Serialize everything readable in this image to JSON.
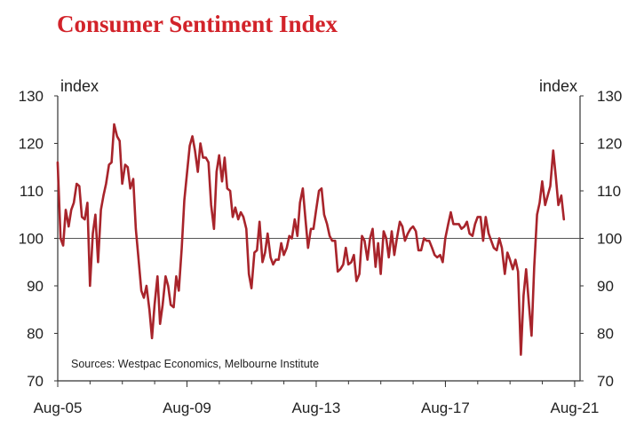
{
  "title": "Consumer Sentiment Index",
  "colors": {
    "title": "#d2232a",
    "series": "#a8242b",
    "axis": "#333333"
  },
  "chart_data": {
    "type": "line",
    "title": "Consumer Sentiment Index",
    "ylabel_left": "index",
    "ylabel_right": "index",
    "xlabel": "",
    "ylim": [
      70,
      130
    ],
    "yticks": [
      70,
      80,
      90,
      100,
      110,
      120,
      130
    ],
    "x_range": [
      2005.583,
      2021.75
    ],
    "xticks": [
      {
        "label": "Aug-05",
        "x": 2005.583
      },
      {
        "label": "Aug-09",
        "x": 2009.583
      },
      {
        "label": "Aug-13",
        "x": 2013.583
      },
      {
        "label": "Aug-17",
        "x": 2017.583
      },
      {
        "label": "Aug-21",
        "x": 2021.583
      }
    ],
    "reference_line": 100,
    "source_note": "Sources: Westpac Economics, Melbourne Institute",
    "series": [
      {
        "name": "Consumer Sentiment Index",
        "points": [
          [
            2005.58,
            116
          ],
          [
            2005.67,
            100
          ],
          [
            2005.75,
            98.5
          ],
          [
            2005.83,
            106
          ],
          [
            2005.92,
            102.5
          ],
          [
            2006.0,
            106
          ],
          [
            2006.08,
            107.5
          ],
          [
            2006.17,
            111.5
          ],
          [
            2006.25,
            111
          ],
          [
            2006.33,
            104.5
          ],
          [
            2006.42,
            104
          ],
          [
            2006.5,
            107.5
          ],
          [
            2006.58,
            90
          ],
          [
            2006.67,
            101
          ],
          [
            2006.75,
            105
          ],
          [
            2006.83,
            95
          ],
          [
            2006.92,
            106
          ],
          [
            2007.0,
            109
          ],
          [
            2007.08,
            111.5
          ],
          [
            2007.17,
            115.5
          ],
          [
            2007.25,
            116
          ],
          [
            2007.33,
            124
          ],
          [
            2007.42,
            121.5
          ],
          [
            2007.5,
            120.5
          ],
          [
            2007.58,
            111.5
          ],
          [
            2007.67,
            115.5
          ],
          [
            2007.75,
            115
          ],
          [
            2007.83,
            110.5
          ],
          [
            2007.92,
            112.5
          ],
          [
            2008.0,
            102
          ],
          [
            2008.08,
            96
          ],
          [
            2008.17,
            89
          ],
          [
            2008.25,
            87.5
          ],
          [
            2008.33,
            90
          ],
          [
            2008.42,
            85
          ],
          [
            2008.5,
            79
          ],
          [
            2008.58,
            86
          ],
          [
            2008.67,
            92
          ],
          [
            2008.75,
            82
          ],
          [
            2008.83,
            86
          ],
          [
            2008.92,
            92
          ],
          [
            2009.0,
            90
          ],
          [
            2009.08,
            86
          ],
          [
            2009.17,
            85.5
          ],
          [
            2009.25,
            92
          ],
          [
            2009.33,
            89
          ],
          [
            2009.42,
            98
          ],
          [
            2009.5,
            108
          ],
          [
            2009.58,
            113.5
          ],
          [
            2009.67,
            119.5
          ],
          [
            2009.75,
            121.5
          ],
          [
            2009.83,
            118.5
          ],
          [
            2009.92,
            114
          ],
          [
            2010.0,
            120
          ],
          [
            2010.08,
            117
          ],
          [
            2010.17,
            117
          ],
          [
            2010.25,
            116
          ],
          [
            2010.33,
            107
          ],
          [
            2010.42,
            102
          ],
          [
            2010.5,
            114
          ],
          [
            2010.58,
            117.5
          ],
          [
            2010.67,
            112
          ],
          [
            2010.75,
            117
          ],
          [
            2010.83,
            110.5
          ],
          [
            2010.92,
            110
          ],
          [
            2011.0,
            104.5
          ],
          [
            2011.08,
            106.5
          ],
          [
            2011.17,
            104
          ],
          [
            2011.25,
            105.5
          ],
          [
            2011.33,
            104.5
          ],
          [
            2011.42,
            102
          ],
          [
            2011.5,
            92.5
          ],
          [
            2011.58,
            89.5
          ],
          [
            2011.67,
            97
          ],
          [
            2011.75,
            97.5
          ],
          [
            2011.83,
            103.5
          ],
          [
            2011.92,
            95
          ],
          [
            2012.0,
            97
          ],
          [
            2012.08,
            101
          ],
          [
            2012.17,
            96
          ],
          [
            2012.25,
            94.5
          ],
          [
            2012.33,
            95.5
          ],
          [
            2012.42,
            95.5
          ],
          [
            2012.5,
            99
          ],
          [
            2012.58,
            96.5
          ],
          [
            2012.67,
            98
          ],
          [
            2012.75,
            100.5
          ],
          [
            2012.83,
            100
          ],
          [
            2012.92,
            104
          ],
          [
            2013.0,
            100.5
          ],
          [
            2013.08,
            107.5
          ],
          [
            2013.17,
            110.5
          ],
          [
            2013.25,
            104
          ],
          [
            2013.33,
            98
          ],
          [
            2013.42,
            102
          ],
          [
            2013.5,
            102
          ],
          [
            2013.58,
            106
          ],
          [
            2013.67,
            110
          ],
          [
            2013.75,
            110.5
          ],
          [
            2013.83,
            105
          ],
          [
            2013.92,
            103
          ],
          [
            2014.0,
            100.5
          ],
          [
            2014.08,
            99.5
          ],
          [
            2014.17,
            99.5
          ],
          [
            2014.25,
            93
          ],
          [
            2014.33,
            93.5
          ],
          [
            2014.42,
            94.5
          ],
          [
            2014.5,
            98
          ],
          [
            2014.58,
            94.5
          ],
          [
            2014.67,
            95
          ],
          [
            2014.75,
            96.5
          ],
          [
            2014.83,
            91
          ],
          [
            2014.92,
            92.5
          ],
          [
            2015.0,
            100.5
          ],
          [
            2015.08,
            99.5
          ],
          [
            2015.17,
            95.5
          ],
          [
            2015.25,
            100
          ],
          [
            2015.33,
            102
          ],
          [
            2015.42,
            94
          ],
          [
            2015.5,
            99
          ],
          [
            2015.58,
            92.5
          ],
          [
            2015.67,
            101.5
          ],
          [
            2015.75,
            100
          ],
          [
            2015.83,
            96
          ],
          [
            2015.92,
            101.5
          ],
          [
            2016.0,
            96.5
          ],
          [
            2016.08,
            100
          ],
          [
            2016.17,
            103.5
          ],
          [
            2016.25,
            102.5
          ],
          [
            2016.33,
            99.5
          ],
          [
            2016.42,
            101
          ],
          [
            2016.5,
            102
          ],
          [
            2016.58,
            102.5
          ],
          [
            2016.67,
            101.5
          ],
          [
            2016.75,
            97.5
          ],
          [
            2016.83,
            97.5
          ],
          [
            2016.92,
            100
          ],
          [
            2017.0,
            99.5
          ],
          [
            2017.08,
            99.5
          ],
          [
            2017.17,
            98
          ],
          [
            2017.25,
            96.5
          ],
          [
            2017.33,
            96
          ],
          [
            2017.42,
            96.5
          ],
          [
            2017.5,
            95
          ],
          [
            2017.58,
            100
          ],
          [
            2017.67,
            103
          ],
          [
            2017.75,
            105.5
          ],
          [
            2017.83,
            103
          ],
          [
            2017.92,
            103
          ],
          [
            2018.0,
            103
          ],
          [
            2018.08,
            102
          ],
          [
            2018.17,
            102.5
          ],
          [
            2018.25,
            103.5
          ],
          [
            2018.33,
            101
          ],
          [
            2018.42,
            100.5
          ],
          [
            2018.5,
            103
          ],
          [
            2018.58,
            104.5
          ],
          [
            2018.67,
            104.5
          ],
          [
            2018.75,
            99.5
          ],
          [
            2018.83,
            104.5
          ],
          [
            2018.92,
            101
          ],
          [
            2019.0,
            99.5
          ],
          [
            2019.08,
            98
          ],
          [
            2019.17,
            97.5
          ],
          [
            2019.25,
            100
          ],
          [
            2019.33,
            98
          ],
          [
            2019.42,
            92.5
          ],
          [
            2019.5,
            97
          ],
          [
            2019.58,
            95.5
          ],
          [
            2019.67,
            93.5
          ],
          [
            2019.75,
            95.5
          ],
          [
            2019.83,
            93
          ],
          [
            2019.92,
            75.5
          ],
          [
            2020.0,
            88
          ],
          [
            2020.08,
            93.5
          ],
          [
            2020.17,
            86
          ],
          [
            2020.25,
            79.5
          ],
          [
            2020.33,
            94
          ],
          [
            2020.42,
            105
          ],
          [
            2020.5,
            107.5
          ],
          [
            2020.58,
            112
          ],
          [
            2020.67,
            107
          ],
          [
            2020.75,
            109
          ],
          [
            2020.83,
            111
          ],
          [
            2020.92,
            118.5
          ],
          [
            2021.0,
            113
          ],
          [
            2021.08,
            107
          ],
          [
            2021.17,
            109
          ],
          [
            2021.25,
            104
          ]
        ]
      }
    ]
  }
}
